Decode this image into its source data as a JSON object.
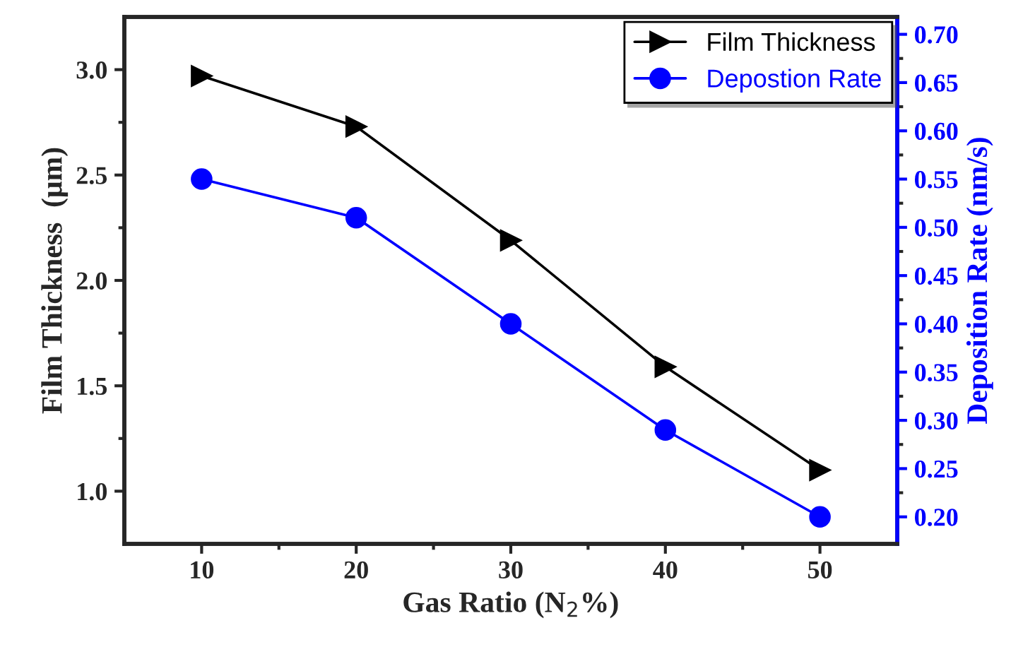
{
  "chart_data": {
    "type": "line",
    "xlabel": "Gas Ratio (N$_{2}$%)",
    "ylabel": "Film Thickness  (μm)",
    "y2label": "Deposition Rate (nm/s)",
    "x": [
      10,
      20,
      30,
      40,
      50
    ],
    "series": [
      {
        "name": "Film Thickness",
        "color": "#000000",
        "marker": "triangle",
        "values": [
          2.97,
          2.73,
          2.19,
          1.59,
          1.1
        ]
      },
      {
        "name": "Depostion Rate",
        "color": "#0000ff",
        "marker": "circle",
        "axis": "y2",
        "values": [
          0.55,
          0.51,
          0.4,
          0.29,
          0.2
        ]
      }
    ],
    "xlim": [
      5,
      55
    ],
    "xticks": [
      10,
      20,
      30,
      40,
      50
    ],
    "ylim": [
      0.75,
      3.25
    ],
    "yticks": [
      {
        "value": 1.0,
        "label": "1.0"
      },
      {
        "value": 1.5,
        "label": "1.5"
      },
      {
        "value": 2.0,
        "label": "2.0"
      },
      {
        "value": 2.5,
        "label": "2.5"
      },
      {
        "value": 3.0,
        "label": "3.0"
      }
    ],
    "y2lim": [
      0.172,
      0.718
    ],
    "y2ticks": [
      {
        "value": 0.2,
        "label": "0.20"
      },
      {
        "value": 0.25,
        "label": "0.25"
      },
      {
        "value": 0.3,
        "label": "0.30"
      },
      {
        "value": 0.35,
        "label": "0.35"
      },
      {
        "value": 0.4,
        "label": "0.40"
      },
      {
        "value": 0.45,
        "label": "0.45"
      },
      {
        "value": 0.5,
        "label": "0.50"
      },
      {
        "value": 0.55,
        "label": "0.55"
      },
      {
        "value": 0.6,
        "label": "0.60"
      },
      {
        "value": 0.65,
        "label": "0.65"
      },
      {
        "value": 0.7,
        "label": "0.70"
      }
    ],
    "grid": false,
    "legend": "top right",
    "line_style": "solid"
  }
}
